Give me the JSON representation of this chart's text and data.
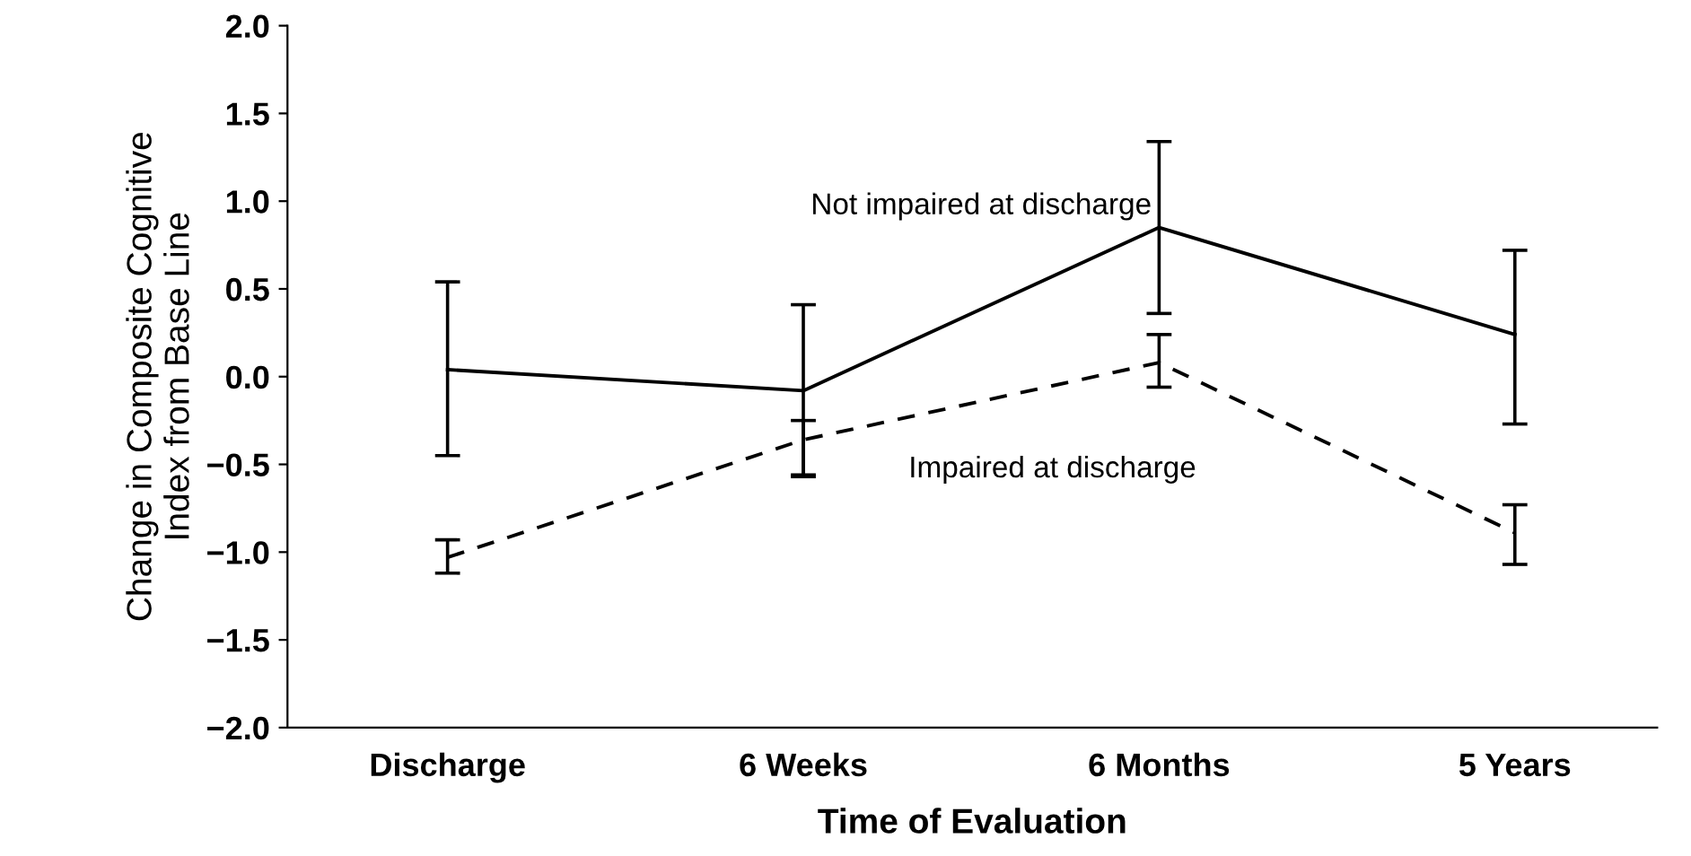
{
  "chart_data": {
    "type": "line",
    "xlabel": "Time of Evaluation",
    "ylabel": "Change in Composite Cognitive\nIndex from Base Line",
    "categories": [
      "Discharge",
      "6 Weeks",
      "6 Months",
      "5 Years"
    ],
    "ylim": [
      -2.0,
      2.0
    ],
    "yticks": [
      {
        "value": -2.0,
        "label": "−2.0"
      },
      {
        "value": -1.5,
        "label": "−1.5"
      },
      {
        "value": -1.0,
        "label": "−1.0"
      },
      {
        "value": -0.5,
        "label": "−0.5"
      },
      {
        "value": 0.0,
        "label": "0.0"
      },
      {
        "value": 0.5,
        "label": "0.5"
      },
      {
        "value": 1.0,
        "label": "1.0"
      },
      {
        "value": 1.5,
        "label": "1.5"
      },
      {
        "value": 2.0,
        "label": "2.0"
      }
    ],
    "grid": false,
    "legend": false,
    "marker": "none",
    "series": [
      {
        "name": "Not impaired at discharge",
        "color": "#000000",
        "line_style": "solid",
        "values": [
          0.04,
          -0.08,
          0.85,
          0.24
        ],
        "errors": [
          [
            -0.45,
            0.54
          ],
          [
            -0.56,
            0.41
          ],
          [
            0.36,
            1.34
          ],
          [
            -0.27,
            0.72
          ]
        ]
      },
      {
        "name": "Impaired at discharge",
        "color": "#000000",
        "line_style": "dashed",
        "values": [
          -1.03,
          -0.36,
          0.08,
          -0.89
        ],
        "errors": [
          [
            -1.12,
            -0.93
          ],
          [
            -0.57,
            -0.25
          ],
          [
            -0.06,
            0.24
          ],
          [
            -1.07,
            -0.73
          ]
        ]
      }
    ]
  }
}
